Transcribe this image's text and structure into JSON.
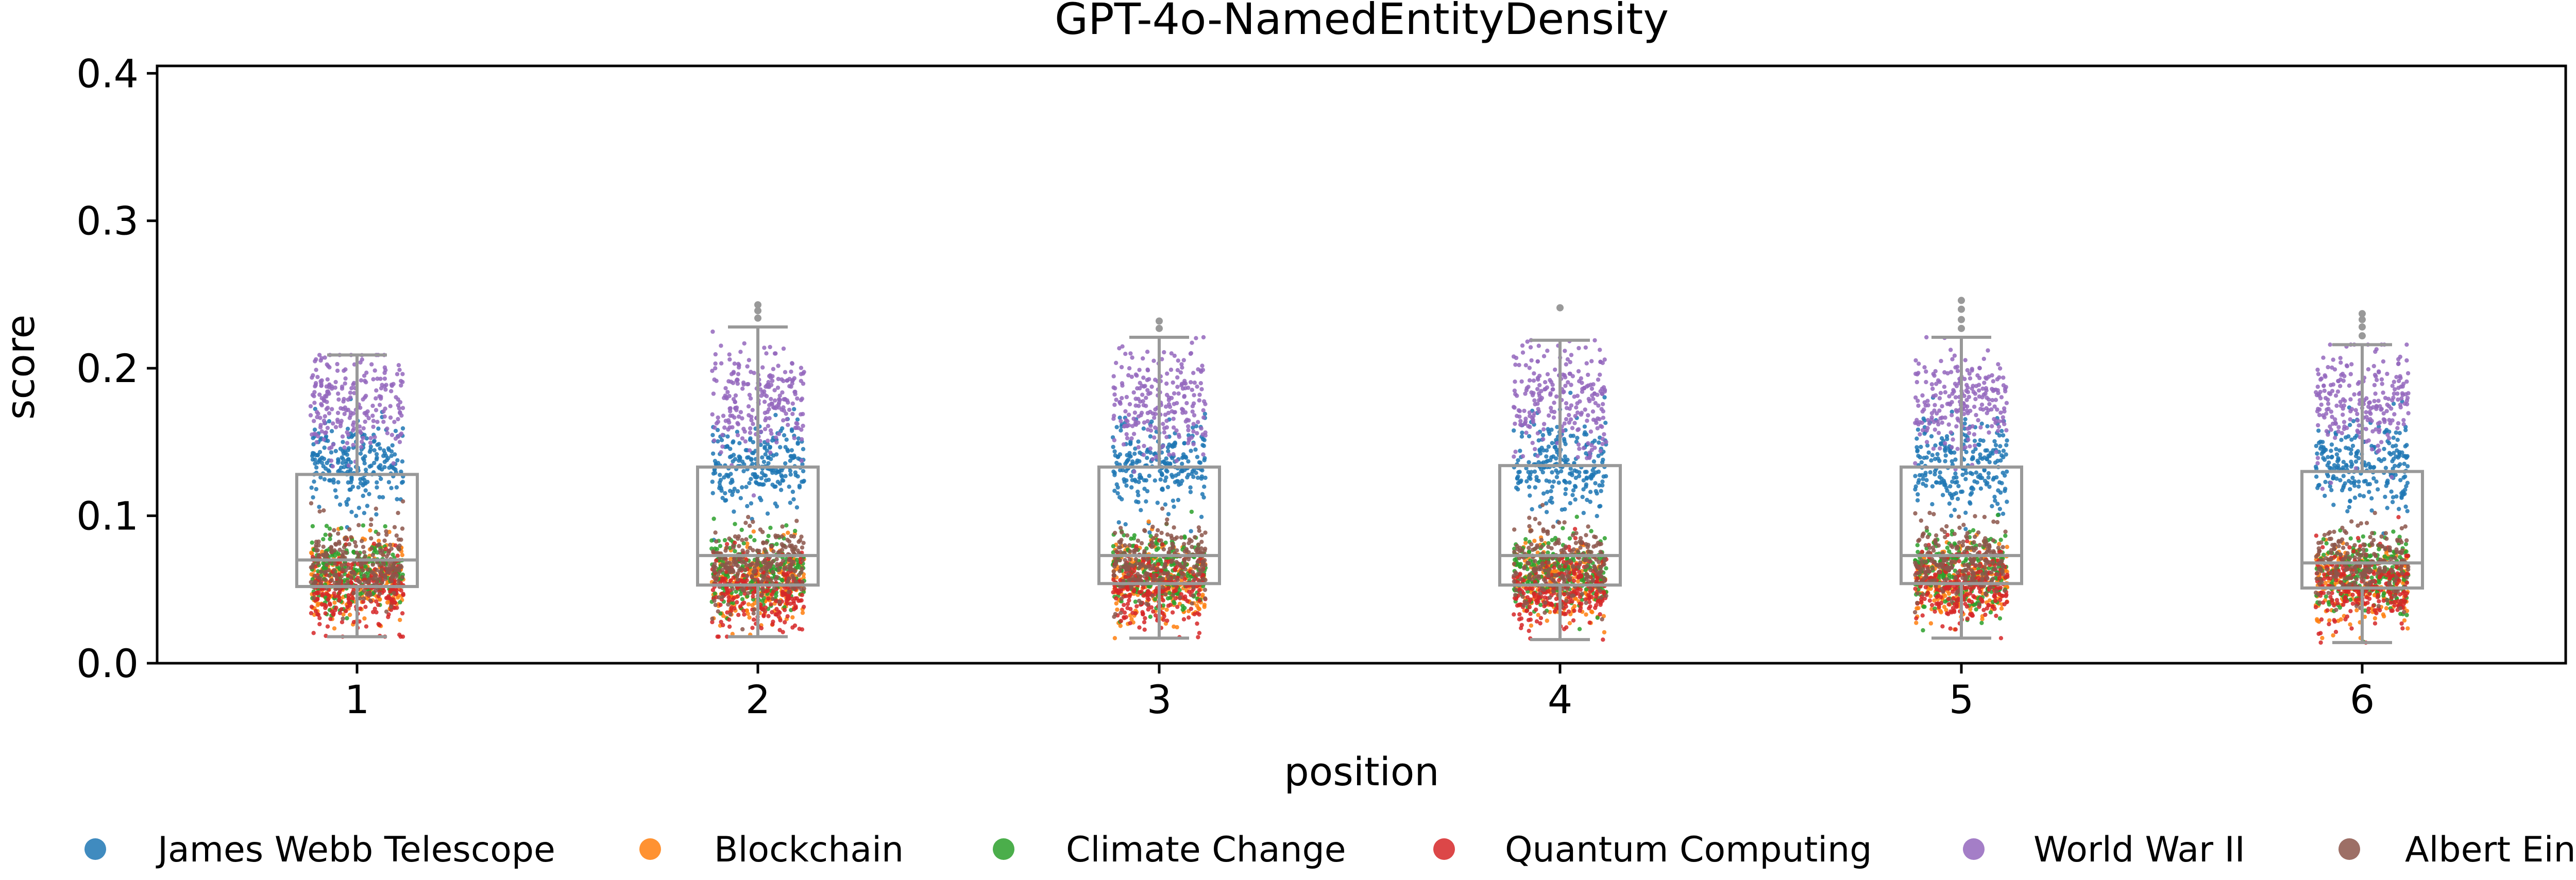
{
  "chart_data": {
    "type": "box-strip",
    "title": "GPT-4o-NamedEntityDensity",
    "xlabel": "position",
    "ylabel": "score",
    "categories": [
      "1",
      "2",
      "3",
      "4",
      "5",
      "6"
    ],
    "ylim": [
      0,
      0.405
    ],
    "yticks": [
      "0.0",
      "0.1",
      "0.2",
      "0.3",
      "0.4"
    ],
    "grid": false,
    "legend_position": "bottom",
    "box_color": "#999999",
    "boxes": [
      {
        "position": "1",
        "q1": 0.052,
        "median": 0.07,
        "q3": 0.128,
        "whisker_low": 0.018,
        "whisker_high": 0.209,
        "outliers": []
      },
      {
        "position": "2",
        "q1": 0.053,
        "median": 0.073,
        "q3": 0.133,
        "whisker_low": 0.018,
        "whisker_high": 0.228,
        "outliers": [
          0.234,
          0.239,
          0.243
        ]
      },
      {
        "position": "3",
        "q1": 0.054,
        "median": 0.073,
        "q3": 0.133,
        "whisker_low": 0.017,
        "whisker_high": 0.221,
        "outliers": [
          0.227,
          0.232
        ]
      },
      {
        "position": "4",
        "q1": 0.053,
        "median": 0.073,
        "q3": 0.134,
        "whisker_low": 0.016,
        "whisker_high": 0.219,
        "outliers": [
          0.241
        ]
      },
      {
        "position": "5",
        "q1": 0.054,
        "median": 0.073,
        "q3": 0.133,
        "whisker_low": 0.017,
        "whisker_high": 0.221,
        "outliers": [
          0.227,
          0.233,
          0.24,
          0.246
        ]
      },
      {
        "position": "6",
        "q1": 0.051,
        "median": 0.068,
        "q3": 0.13,
        "whisker_low": 0.014,
        "whisker_high": 0.216,
        "outliers": [
          0.222,
          0.228,
          0.233,
          0.237
        ]
      }
    ],
    "series": [
      {
        "name": "James Webb Telescope",
        "color": "#1f77b4",
        "center": 0.135,
        "spread": 0.015
      },
      {
        "name": "Blockchain",
        "color": "#ff7f0e",
        "center": 0.055,
        "spread": 0.013
      },
      {
        "name": "Climate Change",
        "color": "#2ca02c",
        "center": 0.062,
        "spread": 0.013
      },
      {
        "name": "Quantum Computing",
        "color": "#d62728",
        "center": 0.05,
        "spread": 0.013
      },
      {
        "name": "World War II",
        "color": "#9467bd",
        "center": 0.178,
        "spread": 0.018
      },
      {
        "name": "Albert Einstein",
        "color": "#8c564b",
        "center": 0.068,
        "spread": 0.013
      }
    ]
  }
}
